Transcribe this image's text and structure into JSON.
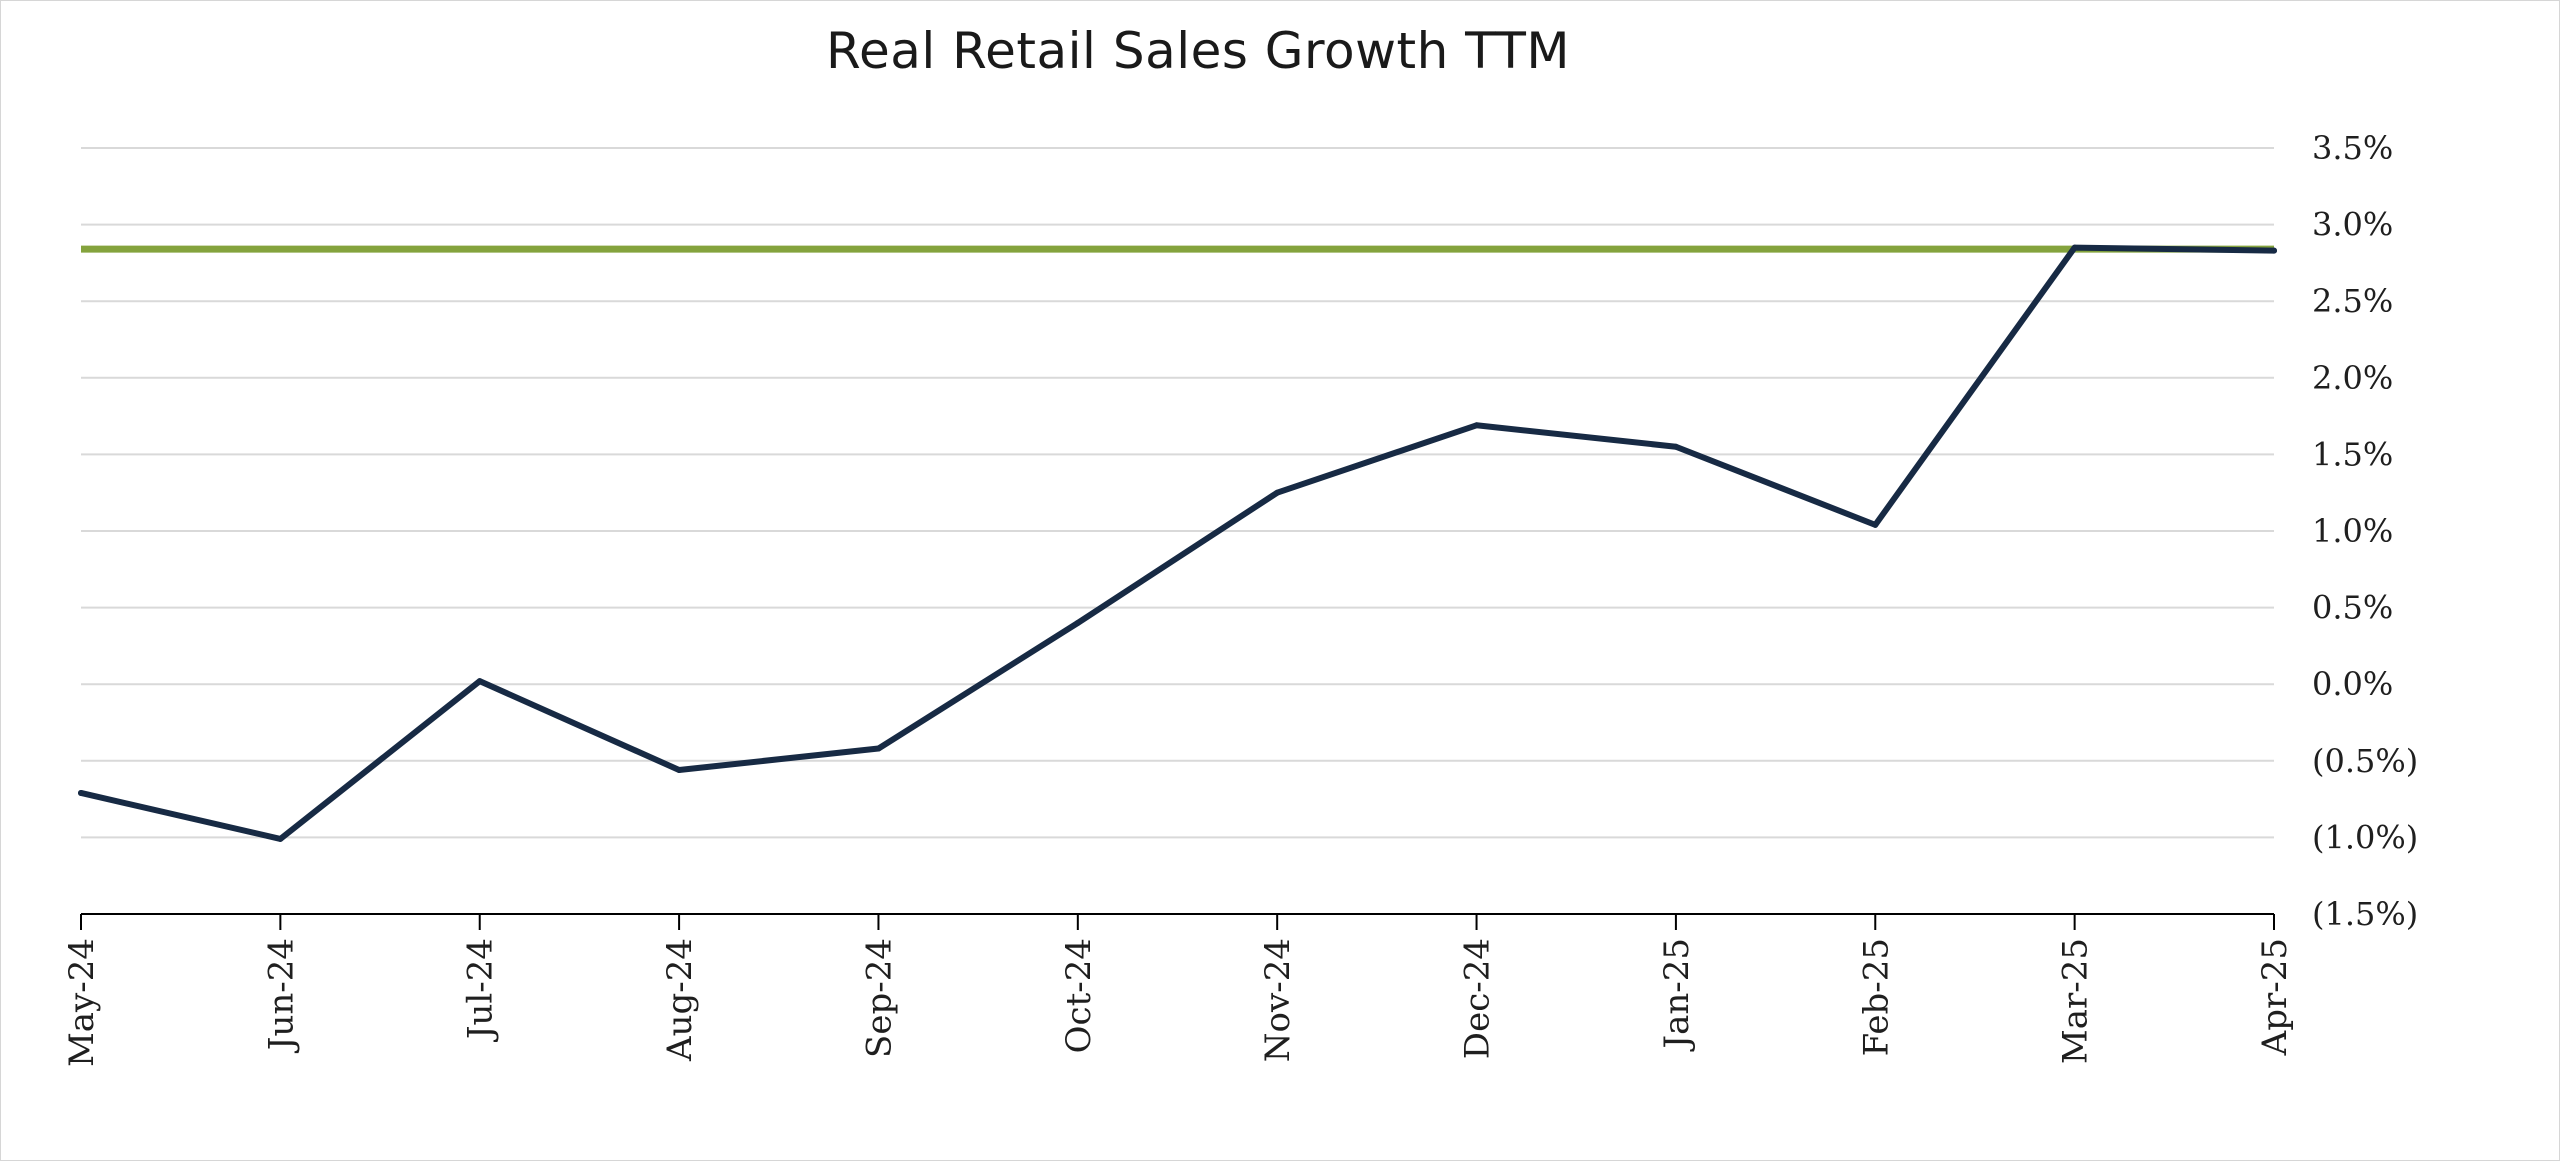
{
  "chart_data": {
    "type": "line",
    "title": "Real Retail Sales Growth TTM",
    "xlabel": "",
    "ylabel": "",
    "categories": [
      "May-24",
      "Jun-24",
      "Jul-24",
      "Aug-24",
      "Sep-24",
      "Oct-24",
      "Nov-24",
      "Dec-24",
      "Jan-25",
      "Feb-25",
      "Mar-25",
      "Apr-25"
    ],
    "series": [
      {
        "values": [
          -0.71,
          -1.01,
          0.02,
          -0.56,
          -0.42,
          0.4,
          1.25,
          1.69,
          1.55,
          1.04,
          2.85,
          2.83
        ],
        "color": "#172a44"
      }
    ],
    "reference_line": {
      "value": 2.84,
      "color": "#84a33d"
    },
    "ylim": [
      -1.5,
      3.5
    ],
    "yticks": [
      3.5,
      3.0,
      2.5,
      2.0,
      1.5,
      1.0,
      0.5,
      0.0,
      -0.5,
      -1.0,
      -1.5
    ],
    "ytick_labels": [
      "3.5%",
      "3.0%",
      "2.5%",
      "2.0%",
      "1.5%",
      "1.0%",
      "0.5%",
      "0.0%",
      "(0.5%)",
      "(1.0%)",
      "(1.5%)"
    ],
    "y_axis_position": "right",
    "grid": true,
    "legend": "none",
    "colors": {
      "grid": "#d9d9d9",
      "axis": "#000000"
    }
  }
}
